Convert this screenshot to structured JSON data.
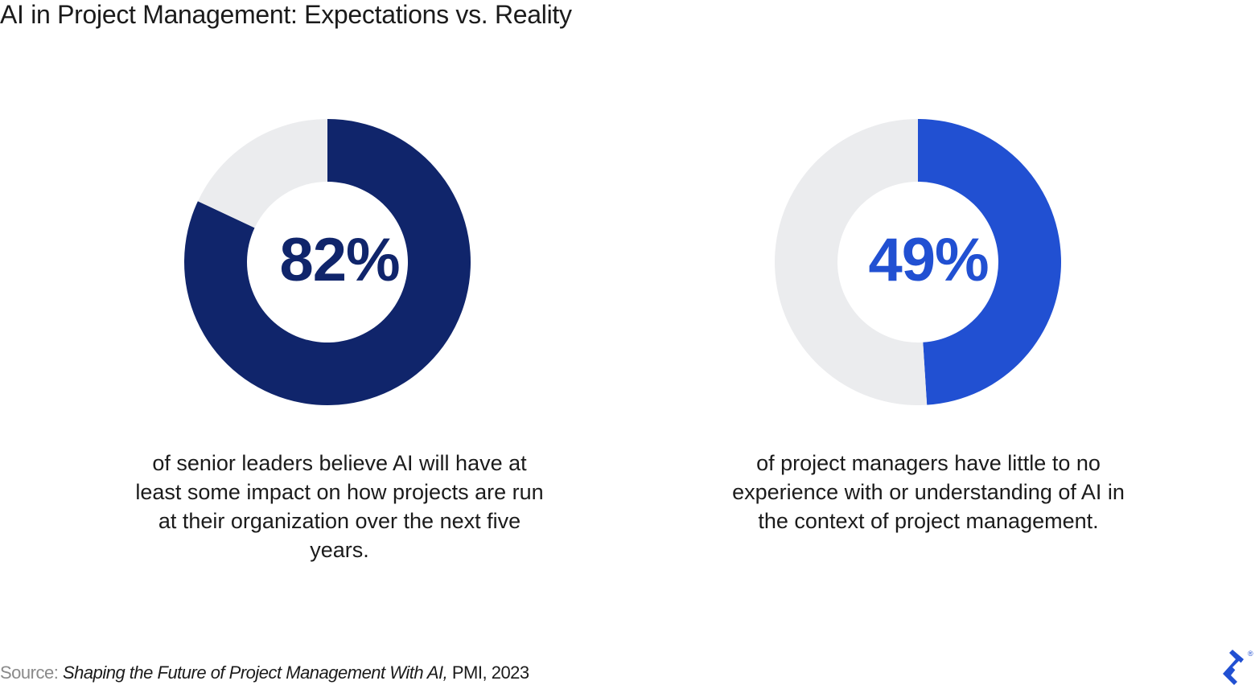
{
  "title": "AI in Project Management: Expectations vs. Reality",
  "colors": {
    "track": "#ebecee",
    "navy": "#10256b",
    "blue": "#2150d2"
  },
  "chart_data": [
    {
      "type": "pie",
      "variant": "donut",
      "values": [
        82,
        18
      ],
      "label": "82%",
      "color": "#10256b",
      "caption": "of senior leaders believe AI will have at least some impact on how projects are run at their organization over the next five years."
    },
    {
      "type": "pie",
      "variant": "donut",
      "values": [
        49,
        51
      ],
      "label": "49%",
      "color": "#2150d2",
      "caption": "of project managers have little to no experience with or understanding of AI in the context of project management."
    }
  ],
  "source": {
    "label": "Source:",
    "work": "Shaping the Future of Project Management With AI,",
    "rest": " PMI, 2023"
  },
  "logo": {
    "name": "toptal-logo",
    "mark": "®"
  }
}
